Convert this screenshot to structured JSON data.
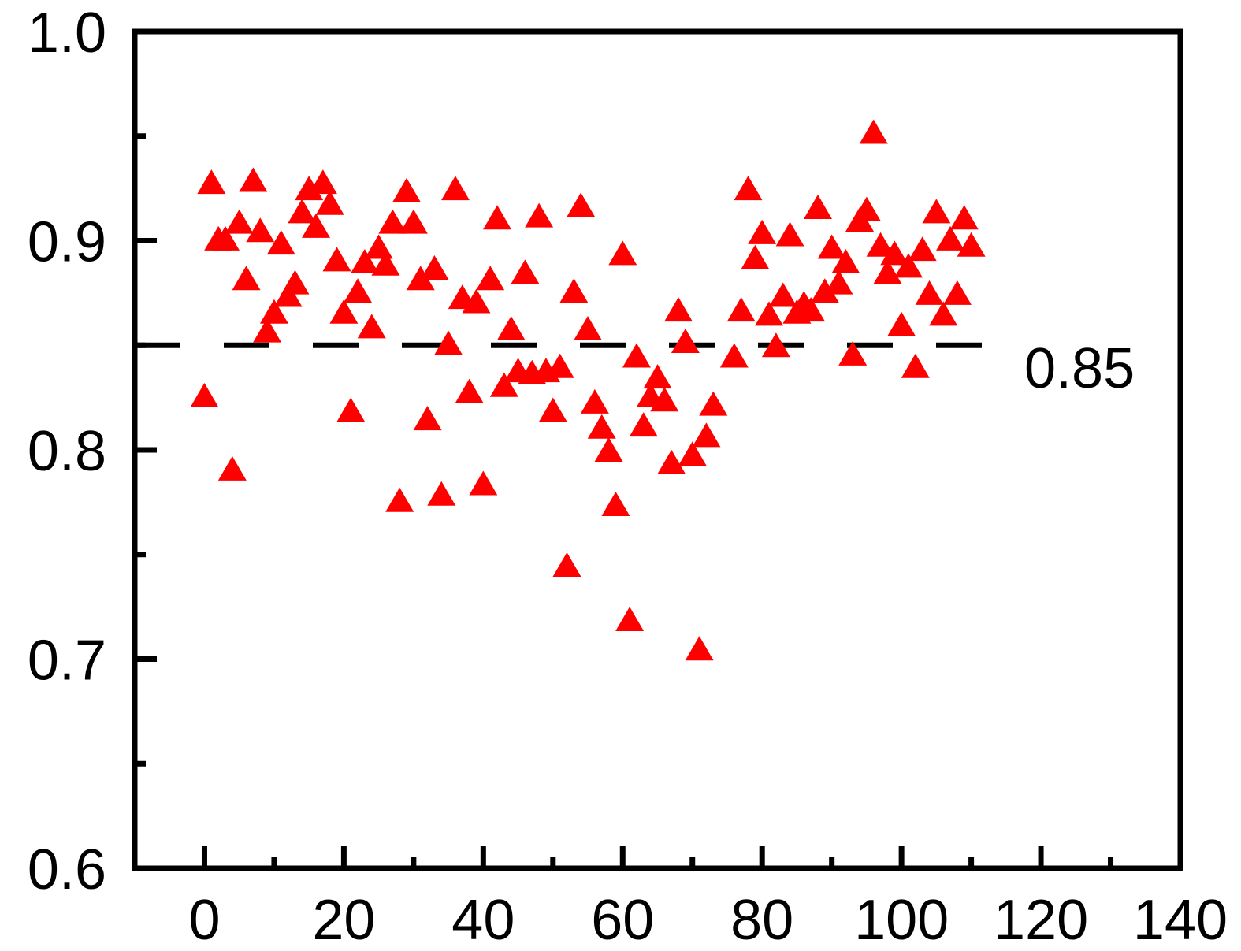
{
  "chart_data": {
    "type": "scatter",
    "title": "",
    "xlabel": "",
    "ylabel": "",
    "xlim": [
      -10,
      140
    ],
    "ylim": [
      0.6,
      1.0
    ],
    "x_ticks": [
      0,
      20,
      40,
      60,
      80,
      100,
      120,
      140
    ],
    "x_tick_labels": [
      "0",
      "20",
      "40",
      "60",
      "80",
      "100",
      "120",
      "140"
    ],
    "y_ticks": [
      0.6,
      0.7,
      0.8,
      0.9,
      1.0
    ],
    "y_tick_labels": [
      "0.6",
      "0.7",
      "0.8",
      "0.9",
      "1.0"
    ],
    "grid": false,
    "marker": "triangle-up",
    "marker_color": "#FF0000",
    "reference_line": {
      "y": 0.85,
      "style": "dashed",
      "color": "#000000",
      "label": "0.85",
      "x_range": [
        -10,
        112
      ]
    },
    "series": [
      {
        "points": [
          [
            0,
            0.826
          ],
          [
            1,
            0.928
          ],
          [
            2,
            0.901
          ],
          [
            3,
            0.901
          ],
          [
            4,
            0.791
          ],
          [
            5,
            0.909
          ],
          [
            6,
            0.882
          ],
          [
            7,
            0.929
          ],
          [
            8,
            0.905
          ],
          [
            9,
            0.857
          ],
          [
            10,
            0.866
          ],
          [
            11,
            0.899
          ],
          [
            12,
            0.874
          ],
          [
            13,
            0.88
          ],
          [
            14,
            0.914
          ],
          [
            15,
            0.925
          ],
          [
            16,
            0.907
          ],
          [
            17,
            0.928
          ],
          [
            18,
            0.918
          ],
          [
            19,
            0.891
          ],
          [
            20,
            0.866
          ],
          [
            21,
            0.819
          ],
          [
            22,
            0.876
          ],
          [
            23,
            0.89
          ],
          [
            24,
            0.859
          ],
          [
            25,
            0.897
          ],
          [
            26,
            0.889
          ],
          [
            27,
            0.909
          ],
          [
            28,
            0.776
          ],
          [
            29,
            0.924
          ],
          [
            30,
            0.909
          ],
          [
            31,
            0.882
          ],
          [
            32,
            0.815
          ],
          [
            33,
            0.887
          ],
          [
            34,
            0.779
          ],
          [
            35,
            0.851
          ],
          [
            36,
            0.925
          ],
          [
            37,
            0.873
          ],
          [
            38,
            0.828
          ],
          [
            39,
            0.871
          ],
          [
            40,
            0.784
          ],
          [
            41,
            0.882
          ],
          [
            42,
            0.911
          ],
          [
            43,
            0.831
          ],
          [
            44,
            0.858
          ],
          [
            45,
            0.838
          ],
          [
            46,
            0.885
          ],
          [
            47,
            0.837
          ],
          [
            48,
            0.912
          ],
          [
            49,
            0.838
          ],
          [
            50,
            0.819
          ],
          [
            51,
            0.84
          ],
          [
            52,
            0.745
          ],
          [
            53,
            0.876
          ],
          [
            54,
            0.917
          ],
          [
            55,
            0.858
          ],
          [
            56,
            0.823
          ],
          [
            57,
            0.811
          ],
          [
            58,
            0.8
          ],
          [
            59,
            0.774
          ],
          [
            60,
            0.894
          ],
          [
            61,
            0.719
          ],
          [
            62,
            0.845
          ],
          [
            63,
            0.812
          ],
          [
            64,
            0.826
          ],
          [
            65,
            0.835
          ],
          [
            66,
            0.824
          ],
          [
            67,
            0.794
          ],
          [
            68,
            0.867
          ],
          [
            69,
            0.852
          ],
          [
            70,
            0.798
          ],
          [
            71,
            0.705
          ],
          [
            72,
            0.807
          ],
          [
            73,
            0.822
          ],
          [
            76,
            0.845
          ],
          [
            77,
            0.867
          ],
          [
            78,
            0.925
          ],
          [
            79,
            0.892
          ],
          [
            80,
            0.904
          ],
          [
            81,
            0.865
          ],
          [
            82,
            0.85
          ],
          [
            83,
            0.874
          ],
          [
            84,
            0.903
          ],
          [
            85,
            0.866
          ],
          [
            86,
            0.87
          ],
          [
            87,
            0.867
          ],
          [
            88,
            0.916
          ],
          [
            89,
            0.876
          ],
          [
            90,
            0.897
          ],
          [
            91,
            0.88
          ],
          [
            92,
            0.89
          ],
          [
            93,
            0.846
          ],
          [
            94,
            0.91
          ],
          [
            95,
            0.915
          ],
          [
            96,
            0.952
          ],
          [
            97,
            0.898
          ],
          [
            98,
            0.885
          ],
          [
            99,
            0.894
          ],
          [
            100,
            0.86
          ],
          [
            101,
            0.888
          ],
          [
            102,
            0.84
          ],
          [
            103,
            0.896
          ],
          [
            104,
            0.875
          ],
          [
            105,
            0.914
          ],
          [
            106,
            0.865
          ],
          [
            107,
            0.901
          ],
          [
            108,
            0.875
          ],
          [
            109,
            0.911
          ],
          [
            110,
            0.898
          ]
        ]
      }
    ]
  }
}
